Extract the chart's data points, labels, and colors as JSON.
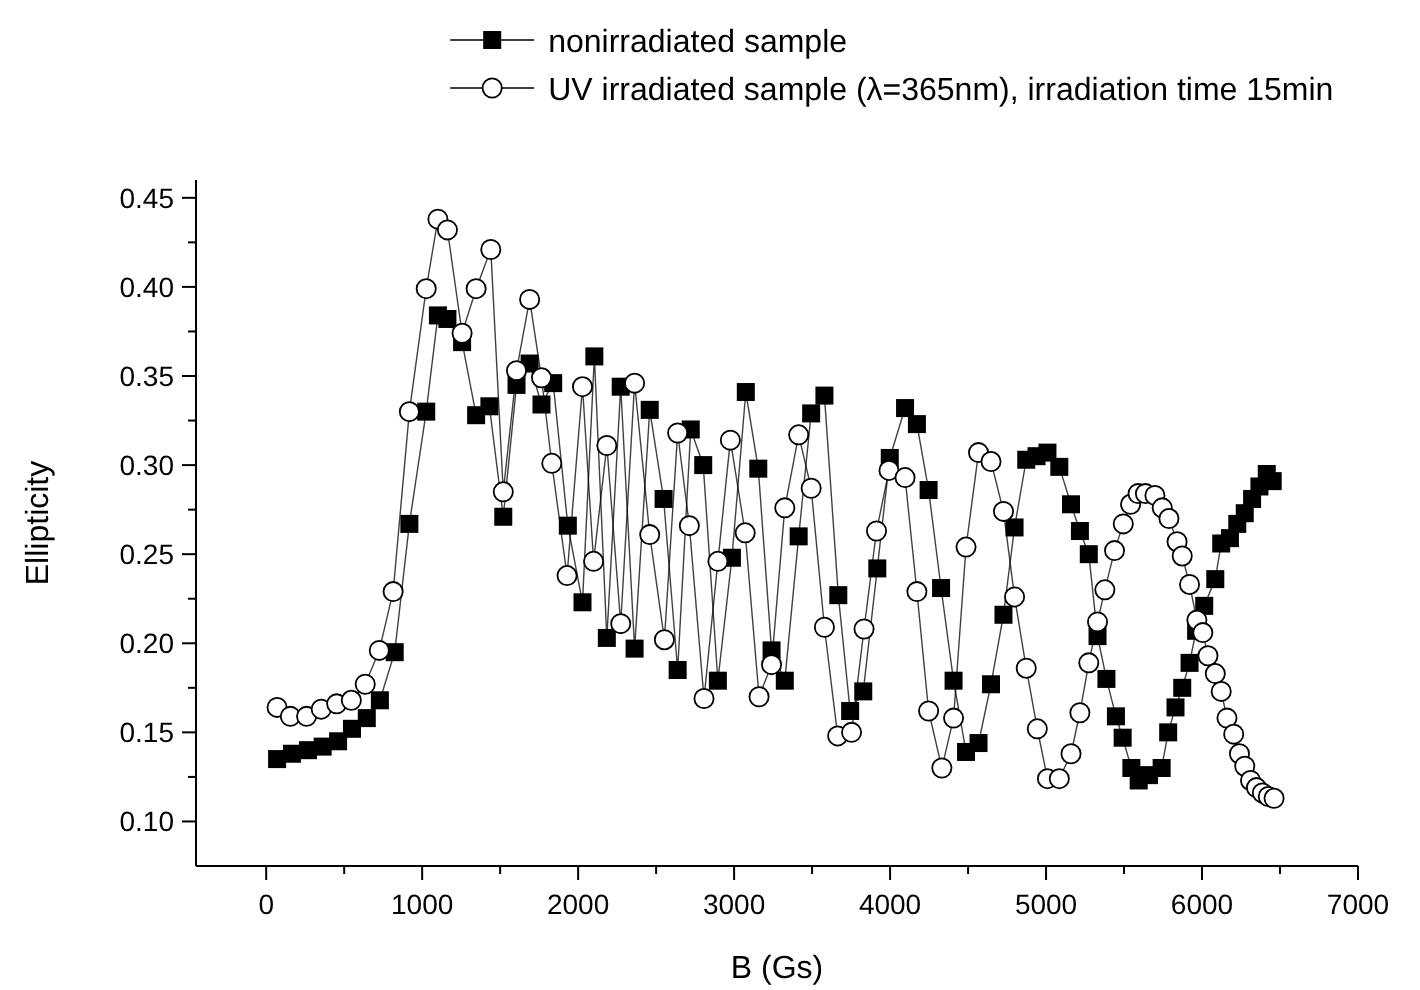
{
  "chart_data": {
    "type": "line",
    "xlabel": "B (Gs)",
    "ylabel": "Ellipticity",
    "xlim": [
      -450,
      7000
    ],
    "ylim": [
      0.075,
      0.46
    ],
    "xticks": [
      0,
      {
        "value": 500,
        "label": null
      },
      1000,
      {
        "value": 1500,
        "label": null
      },
      2000,
      {
        "value": 2500,
        "label": null
      },
      3000,
      {
        "value": 3500,
        "label": null
      },
      4000,
      {
        "value": 4500,
        "label": null
      },
      5000,
      {
        "value": 5500,
        "label": null
      },
      6000,
      {
        "value": 6500,
        "label": null
      },
      7000
    ],
    "yticks": [
      {
        "value": 0.1,
        "label": "0.10"
      },
      {
        "value": 0.125,
        "label": null
      },
      {
        "value": 0.15,
        "label": "0.15"
      },
      {
        "value": 0.175,
        "label": null
      },
      {
        "value": 0.2,
        "label": "0.20"
      },
      {
        "value": 0.225,
        "label": null
      },
      {
        "value": 0.25,
        "label": "0.25"
      },
      {
        "value": 0.275,
        "label": null
      },
      {
        "value": 0.3,
        "label": "0.30"
      },
      {
        "value": 0.325,
        "label": null
      },
      {
        "value": 0.35,
        "label": "0.35"
      },
      {
        "value": 0.375,
        "label": null
      },
      {
        "value": 0.4,
        "label": "0.40"
      },
      {
        "value": 0.425,
        "label": null
      },
      {
        "value": 0.45,
        "label": "0.45"
      }
    ],
    "grid": false,
    "legend": "top",
    "line_style": "solid",
    "series": [
      {
        "name": "nonirradiated sample",
        "color": "#000000",
        "marker": "square",
        "x": [
          70,
          165,
          268,
          362,
          461,
          550,
          645,
          729,
          824,
          918,
          1026,
          1101,
          1162,
          1256,
          1346,
          1431,
          1520,
          1605,
          1689,
          1765,
          1840,
          1934,
          2028,
          2104,
          2184,
          2273,
          2362,
          2459,
          2548,
          2638,
          2722,
          2802,
          2896,
          2986,
          3075,
          3155,
          3240,
          3325,
          3414,
          3494,
          3579,
          3668,
          3744,
          3828,
          3918,
          3998,
          4096,
          4172,
          4247,
          4327,
          4407,
          4487,
          4567,
          4647,
          4727,
          4798,
          4873,
          4939,
          5009,
          5085,
          5160,
          5217,
          5274,
          5330,
          5387,
          5448,
          5491,
          5547,
          5594,
          5660,
          5741,
          5783,
          5830,
          5873,
          5920,
          5962,
          6014,
          6085,
          6123,
          6179,
          6226,
          6274,
          6321,
          6368,
          6415,
          6453
        ],
        "values": [
          0.135,
          0.138,
          0.14,
          0.142,
          0.145,
          0.152,
          0.158,
          0.168,
          0.195,
          0.267,
          0.33,
          0.384,
          0.382,
          0.369,
          0.328,
          0.333,
          0.271,
          0.345,
          0.357,
          0.334,
          0.346,
          0.266,
          0.223,
          0.361,
          0.203,
          0.344,
          0.197,
          0.331,
          0.281,
          0.185,
          0.32,
          0.3,
          0.179,
          0.248,
          0.341,
          0.298,
          0.196,
          0.179,
          0.26,
          0.329,
          0.339,
          0.227,
          0.162,
          0.173,
          0.242,
          0.304,
          0.332,
          0.323,
          0.286,
          0.231,
          0.179,
          0.139,
          0.144,
          0.177,
          0.216,
          0.265,
          0.303,
          0.305,
          0.307,
          0.299,
          0.278,
          0.263,
          0.25,
          0.204,
          0.18,
          0.159,
          0.147,
          0.13,
          0.123,
          0.126,
          0.13,
          0.15,
          0.164,
          0.175,
          0.189,
          0.207,
          0.221,
          0.236,
          0.256,
          0.259,
          0.267,
          0.273,
          0.281,
          0.288,
          0.295,
          0.291
        ]
      },
      {
        "name": "UV irradiated sample (λ=365nm), irradiation time 15min",
        "color": "#000000",
        "marker": "circle",
        "x": [
          70,
          155,
          259,
          353,
          452,
          546,
          635,
          725,
          814,
          918,
          1026,
          1101,
          1162,
          1256,
          1346,
          1440,
          1520,
          1605,
          1689,
          1765,
          1831,
          1929,
          2028,
          2099,
          2184,
          2273,
          2362,
          2459,
          2553,
          2638,
          2713,
          2807,
          2896,
          2976,
          3071,
          3160,
          3240,
          3325,
          3414,
          3494,
          3579,
          3664,
          3753,
          3833,
          3913,
          3993,
          4096,
          4172,
          4247,
          4332,
          4407,
          4487,
          4567,
          4647,
          4727,
          4798,
          4873,
          4944,
          5009,
          5085,
          5160,
          5217,
          5274,
          5330,
          5377,
          5439,
          5495,
          5542,
          5590,
          5637,
          5698,
          5745,
          5788,
          5840,
          5873,
          5920,
          5967,
          6005,
          6038,
          6085,
          6123,
          6160,
          6203,
          6240,
          6274,
          6311,
          6349,
          6387,
          6425,
          6462
        ],
        "values": [
          0.164,
          0.159,
          0.159,
          0.163,
          0.166,
          0.168,
          0.177,
          0.196,
          0.229,
          0.33,
          0.399,
          0.438,
          0.432,
          0.374,
          0.399,
          0.421,
          0.285,
          0.353,
          0.393,
          0.349,
          0.301,
          0.238,
          0.344,
          0.246,
          0.311,
          0.211,
          0.346,
          0.261,
          0.202,
          0.318,
          0.266,
          0.169,
          0.246,
          0.314,
          0.262,
          0.17,
          0.188,
          0.276,
          0.317,
          0.287,
          0.209,
          0.148,
          0.15,
          0.208,
          0.263,
          0.297,
          0.293,
          0.229,
          0.162,
          0.13,
          0.158,
          0.254,
          0.307,
          0.302,
          0.274,
          0.226,
          0.186,
          0.152,
          0.124,
          0.124,
          0.138,
          0.161,
          0.189,
          0.212,
          0.23,
          0.252,
          0.267,
          0.278,
          0.284,
          0.284,
          0.283,
          0.276,
          0.27,
          0.257,
          0.249,
          0.233,
          0.213,
          0.206,
          0.193,
          0.183,
          0.173,
          0.158,
          0.149,
          0.138,
          0.131,
          0.123,
          0.119,
          0.116,
          0.114,
          0.113
        ]
      }
    ]
  }
}
